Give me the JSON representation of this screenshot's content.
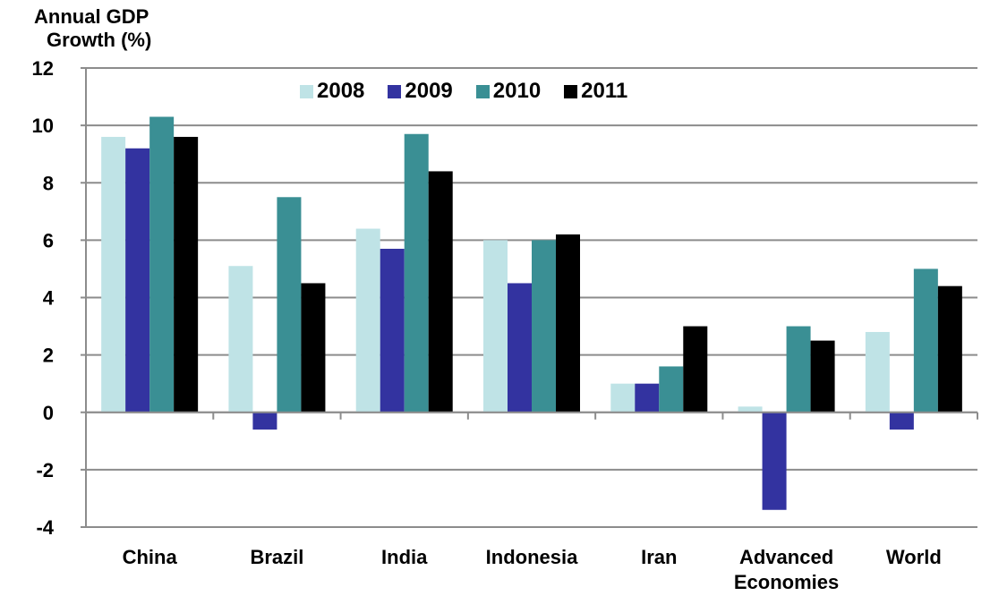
{
  "chart_data": {
    "type": "bar",
    "title": "",
    "ylabel_line1": "Annual GDP",
    "ylabel_line2": "Growth (%)",
    "xlabel": "",
    "ylim": [
      -4,
      12
    ],
    "yticks": [
      -4,
      -2,
      0,
      2,
      4,
      6,
      8,
      10,
      12
    ],
    "grid": "horizontal",
    "legend_position": "top-center",
    "categories": [
      [
        "China"
      ],
      [
        "Brazil"
      ],
      [
        "India"
      ],
      [
        "Indonesia"
      ],
      [
        "Iran"
      ],
      [
        "Advanced",
        "Economies"
      ],
      [
        "World"
      ]
    ],
    "series": [
      {
        "name": "2008",
        "color": "#bfe3e6",
        "values": [
          9.6,
          5.1,
          6.4,
          6.0,
          1.0,
          0.2,
          2.8
        ]
      },
      {
        "name": "2009",
        "color": "#3333a0",
        "values": [
          9.2,
          -0.6,
          5.7,
          4.5,
          1.0,
          -3.4,
          -0.6
        ]
      },
      {
        "name": "2010",
        "color": "#3a8f94",
        "values": [
          10.3,
          7.5,
          9.7,
          6.0,
          1.6,
          3.0,
          5.0
        ]
      },
      {
        "name": "2011",
        "color": "#000000",
        "values": [
          9.6,
          4.5,
          8.4,
          6.2,
          3.0,
          2.5,
          4.4
        ]
      }
    ]
  }
}
